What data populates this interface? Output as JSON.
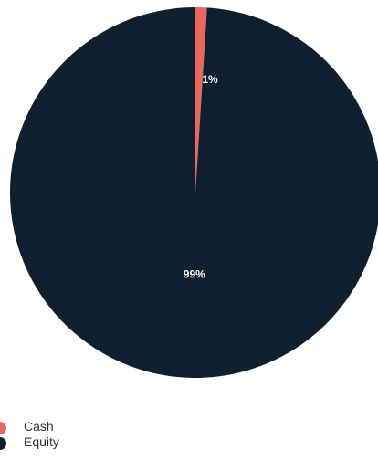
{
  "chart_data": {
    "type": "pie",
    "slices": [
      {
        "label": "Cash",
        "value": 1,
        "display": "1%",
        "color": "#e8685f"
      },
      {
        "label": "Equity",
        "value": 99,
        "display": "99%",
        "color": "#0e1f2d"
      }
    ],
    "legend": {
      "placement": "bottom-left",
      "items": [
        "Cash",
        "Equity"
      ]
    }
  }
}
